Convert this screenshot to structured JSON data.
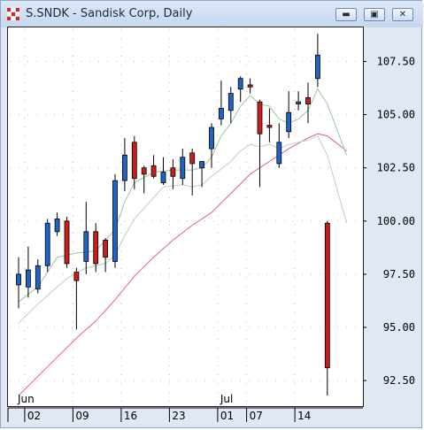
{
  "window": {
    "title": "S.SNDK - Sandisk Corp, Daily",
    "minimize_icon": "minimize-icon",
    "restore_icon": "restore-icon",
    "close_icon": "close-icon"
  },
  "chart_data": {
    "type": "candlestick",
    "ylim": [
      91.3,
      109.1
    ],
    "yticks": [
      "107.50",
      "105.00",
      "102.50",
      "100.00",
      "97.50",
      "95.00",
      "92.50"
    ],
    "ytick_values": [
      107.5,
      105.0,
      102.5,
      100.0,
      97.5,
      95.0,
      92.5
    ],
    "grid": true,
    "month_labels": [
      {
        "label": "Jun",
        "index": 0
      },
      {
        "label": "Jul",
        "index": 21
      }
    ],
    "date_labels": [
      {
        "label": "02",
        "index": 1
      },
      {
        "label": "09",
        "index": 6
      },
      {
        "label": "16",
        "index": 11
      },
      {
        "label": "23",
        "index": 16
      },
      {
        "label": "01",
        "index": 21
      },
      {
        "label": "07",
        "index": 24
      },
      {
        "label": "14",
        "index": 29
      }
    ],
    "candles": [
      {
        "o": 97.0,
        "h": 98.3,
        "l": 95.9,
        "c": 97.5
      },
      {
        "o": 96.9,
        "h": 98.8,
        "l": 96.4,
        "c": 97.7
      },
      {
        "o": 96.8,
        "h": 98.2,
        "l": 96.6,
        "c": 97.9
      },
      {
        "o": 97.9,
        "h": 100.1,
        "l": 97.6,
        "c": 99.9
      },
      {
        "o": 99.5,
        "h": 100.4,
        "l": 99.3,
        "c": 100.1
      },
      {
        "o": 100.0,
        "h": 100.2,
        "l": 97.8,
        "c": 98.0
      },
      {
        "o": 97.6,
        "h": 97.8,
        "l": 94.9,
        "c": 97.2
      },
      {
        "o": 98.1,
        "h": 100.9,
        "l": 97.5,
        "c": 99.5
      },
      {
        "o": 99.5,
        "h": 99.9,
        "l": 97.6,
        "c": 98.0
      },
      {
        "o": 99.1,
        "h": 99.2,
        "l": 97.6,
        "c": 98.3
      },
      {
        "o": 98.1,
        "h": 102.2,
        "l": 97.8,
        "c": 101.9
      },
      {
        "o": 101.9,
        "h": 103.9,
        "l": 101.4,
        "c": 103.1
      },
      {
        "o": 103.7,
        "h": 104.0,
        "l": 101.5,
        "c": 102.0
      },
      {
        "o": 102.5,
        "h": 102.6,
        "l": 101.3,
        "c": 102.2
      },
      {
        "o": 102.6,
        "h": 103.1,
        "l": 102.0,
        "c": 102.1
      },
      {
        "o": 101.8,
        "h": 103.0,
        "l": 101.7,
        "c": 102.3
      },
      {
        "o": 102.5,
        "h": 102.9,
        "l": 101.5,
        "c": 102.1
      },
      {
        "o": 102.0,
        "h": 103.4,
        "l": 101.7,
        "c": 103.0
      },
      {
        "o": 103.2,
        "h": 103.4,
        "l": 101.2,
        "c": 102.7
      },
      {
        "o": 102.5,
        "h": 102.8,
        "l": 101.6,
        "c": 102.8
      },
      {
        "o": 103.4,
        "h": 104.6,
        "l": 102.5,
        "c": 104.4
      },
      {
        "o": 104.8,
        "h": 106.6,
        "l": 104.5,
        "c": 105.3
      },
      {
        "o": 105.2,
        "h": 106.3,
        "l": 104.6,
        "c": 106.0
      },
      {
        "o": 106.2,
        "h": 106.8,
        "l": 105.6,
        "c": 106.7
      },
      {
        "o": 106.4,
        "h": 106.7,
        "l": 106.0,
        "c": 106.3
      },
      {
        "o": 105.6,
        "h": 105.7,
        "l": 101.6,
        "c": 104.1
      },
      {
        "o": 104.5,
        "h": 105.3,
        "l": 103.7,
        "c": 104.4
      },
      {
        "o": 102.7,
        "h": 104.6,
        "l": 102.5,
        "c": 103.7
      },
      {
        "o": 104.2,
        "h": 106.1,
        "l": 103.9,
        "c": 105.1
      },
      {
        "o": 105.5,
        "h": 106.1,
        "l": 105.2,
        "c": 105.6
      },
      {
        "o": 105.8,
        "h": 106.5,
        "l": 104.6,
        "c": 105.5
      },
      {
        "o": 106.7,
        "h": 108.8,
        "l": 106.3,
        "c": 107.8
      },
      {
        "o": 99.9,
        "h": 100.0,
        "l": 91.8,
        "c": 93.1
      }
    ],
    "ma_short": [
      [
        0,
        96.2
      ],
      [
        2,
        96.9
      ],
      [
        4,
        98.3
      ],
      [
        6,
        98.5
      ],
      [
        8,
        98.6
      ],
      [
        10,
        99.6
      ],
      [
        11,
        100.9
      ],
      [
        12,
        101.8
      ],
      [
        14,
        102.3
      ],
      [
        16,
        102.4
      ],
      [
        18,
        102.4
      ],
      [
        19,
        102.5
      ],
      [
        20,
        103.0
      ],
      [
        21,
        104.0
      ],
      [
        22,
        104.6
      ],
      [
        23,
        105.4
      ],
      [
        24,
        105.9
      ],
      [
        25,
        105.5
      ],
      [
        26,
        105.4
      ],
      [
        27,
        104.8
      ],
      [
        28,
        104.6
      ],
      [
        29,
        104.8
      ],
      [
        30,
        105.2
      ],
      [
        31,
        106.2
      ],
      [
        32,
        105.5
      ],
      [
        34,
        103.1
      ]
    ],
    "ma_mid": [
      [
        0,
        95.2
      ],
      [
        2,
        96.1
      ],
      [
        5,
        97.3
      ],
      [
        7,
        97.8
      ],
      [
        9,
        98.0
      ],
      [
        10,
        98.4
      ],
      [
        11,
        99.3
      ],
      [
        12,
        100.1
      ],
      [
        14,
        101.1
      ],
      [
        15,
        101.6
      ],
      [
        17,
        101.7
      ],
      [
        18,
        101.6
      ],
      [
        19,
        101.7
      ],
      [
        20,
        102.1
      ],
      [
        22,
        102.8
      ],
      [
        23,
        103.3
      ],
      [
        24,
        103.6
      ],
      [
        25,
        103.5
      ],
      [
        26,
        103.6
      ],
      [
        27,
        103.4
      ],
      [
        28,
        103.6
      ],
      [
        29,
        103.7
      ],
      [
        30,
        103.8
      ],
      [
        31,
        104.0
      ],
      [
        32,
        103.1
      ],
      [
        34,
        99.9
      ]
    ],
    "ma_long": [
      [
        0,
        91.8
      ],
      [
        2,
        92.7
      ],
      [
        4,
        93.6
      ],
      [
        6,
        94.5
      ],
      [
        8,
        95.3
      ],
      [
        10,
        96.3
      ],
      [
        12,
        97.4
      ],
      [
        14,
        98.3
      ],
      [
        16,
        99.1
      ],
      [
        18,
        99.8
      ],
      [
        20,
        100.4
      ],
      [
        22,
        101.3
      ],
      [
        24,
        102.2
      ],
      [
        26,
        102.8
      ],
      [
        28,
        103.4
      ],
      [
        30,
        103.9
      ],
      [
        31,
        104.1
      ],
      [
        32,
        104.0
      ],
      [
        34,
        103.3
      ]
    ],
    "colors": {
      "up": "#1f63c7",
      "down": "#c81e1e",
      "wick": "#000000",
      "ma_short": "#9ac89a",
      "ma_mid": "#b8d4b8",
      "ma_long": "#e06088",
      "grid": "#bdbdbd"
    }
  }
}
